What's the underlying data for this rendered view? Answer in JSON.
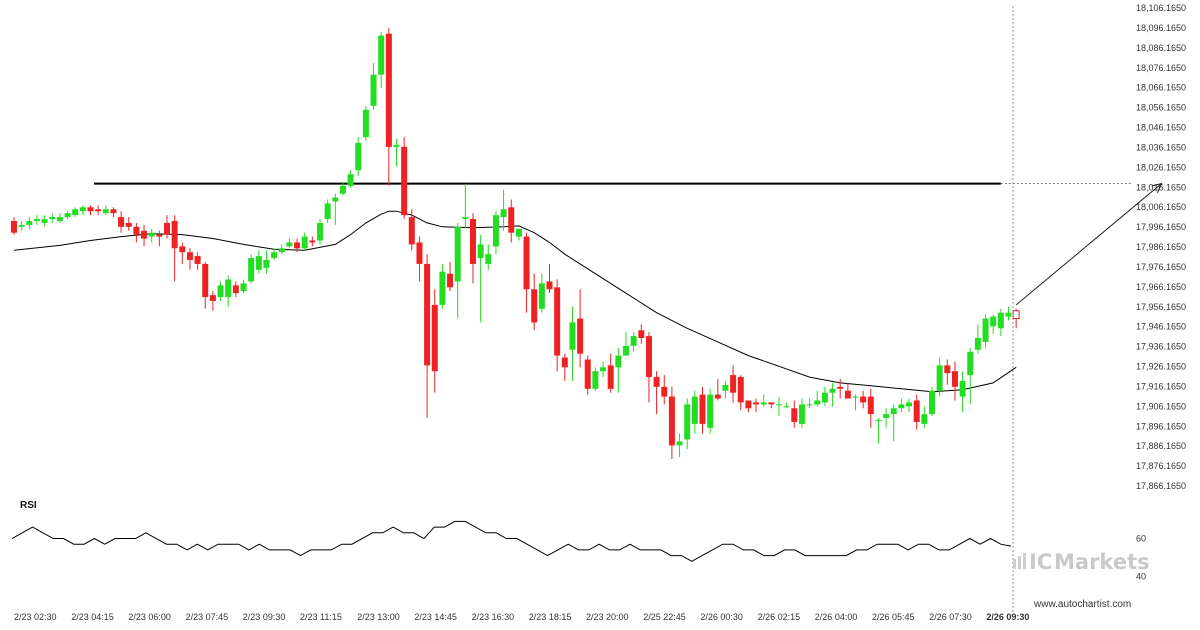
{
  "chart_data": [
    {
      "type": "candlestick",
      "ylim": [
        17861.165,
        18106.165
      ],
      "y_ticks": [
        "18,106.1650",
        "18,096.1650",
        "18,086.1650",
        "18,076.1650",
        "18,066.1650",
        "18,056.1650",
        "18,046.1650",
        "18,036.1650",
        "18,026.1650",
        "18,016.1650",
        "18,006.1650",
        "17,996.1650",
        "17,986.1650",
        "17,976.1650",
        "17,966.1650",
        "17,956.1650",
        "17,946.1650",
        "17,936.1650",
        "17,926.1650",
        "17,916.1650",
        "17,906.1650",
        "17,896.1650",
        "17,886.1650",
        "17,876.1650",
        "17,866.1650"
      ],
      "x_ticks": [
        "2/23 02:30",
        "2/23 04:15",
        "2/23 06:00",
        "2/23 07:45",
        "2/23 09:30",
        "2/23 11:15",
        "2/23 13:00",
        "2/23 14:45",
        "2/23 16:30",
        "2/23 18:15",
        "2/23 20:00",
        "2/25 22:45",
        "2/26 00:30",
        "2/26 02:15",
        "2/26 04:00",
        "2/26 05:45",
        "2/26 07:30",
        "2/26 09:30"
      ],
      "x_tick_highlight": "2/26 09:30",
      "candles": [
        [
          17997,
          17991,
          17999,
          17990
        ],
        [
          17994,
          17995,
          17997,
          17992
        ],
        [
          17995,
          17997,
          17999,
          17993
        ],
        [
          17997,
          17998,
          18000,
          17995
        ],
        [
          17996,
          17998,
          18000,
          17994
        ],
        [
          17998,
          17999,
          18001,
          17996
        ],
        [
          17997,
          17999,
          18001,
          17996
        ],
        [
          17999,
          18001,
          18002,
          17998
        ],
        [
          18000,
          18003,
          18004,
          17999
        ],
        [
          18002,
          18004,
          18005,
          18000
        ],
        [
          18004,
          18002,
          18005,
          18000
        ],
        [
          18003,
          18002,
          18005,
          18000
        ],
        [
          18001,
          18003,
          18005,
          18000
        ],
        [
          18003,
          18001,
          18004,
          17999
        ],
        [
          17999,
          17994,
          18002,
          17991
        ],
        [
          17996,
          17994,
          17999,
          17992
        ],
        [
          17994,
          17990,
          17996,
          17986
        ],
        [
          17992,
          17988,
          17995,
          17984
        ],
        [
          17989,
          17991,
          17993,
          17986
        ],
        [
          17990,
          17989,
          17992,
          17984
        ],
        [
          17996,
          17990,
          18000,
          17988
        ],
        [
          17997,
          17983,
          18000,
          17966
        ],
        [
          17984,
          17981,
          17986,
          17975
        ],
        [
          17981,
          17977,
          17983,
          17972
        ],
        [
          17979,
          17975,
          17981,
          17972
        ],
        [
          17975,
          17958,
          17976,
          17952
        ],
        [
          17959,
          17956,
          17961,
          17951
        ],
        [
          17958,
          17964,
          17966,
          17956
        ],
        [
          17958,
          17967,
          17969,
          17953
        ],
        [
          17964,
          17960,
          17966,
          17958
        ],
        [
          17961,
          17965,
          17967,
          17960
        ],
        [
          17966,
          17978,
          17980,
          17965
        ],
        [
          17972,
          17979,
          17982,
          17970
        ],
        [
          17973,
          17977,
          17982,
          17970
        ],
        [
          17978,
          17981,
          17983,
          17977
        ],
        [
          17981,
          17983,
          17985,
          17980
        ],
        [
          17984,
          17986,
          17988,
          17983
        ],
        [
          17986,
          17983,
          17988,
          17981
        ],
        [
          17983,
          17989,
          17991,
          17982
        ],
        [
          17987,
          17986,
          17989,
          17984
        ],
        [
          17987,
          17996,
          17998,
          17985
        ],
        [
          17998,
          18006,
          18008,
          17996
        ],
        [
          18007,
          18009,
          18011,
          17995
        ],
        [
          18011,
          18015,
          18017,
          18010
        ],
        [
          18015,
          18021,
          18023,
          18014
        ],
        [
          18023,
          18037,
          18040,
          18020
        ],
        [
          18040,
          18054,
          18056,
          18038
        ],
        [
          18056,
          18072,
          18078,
          18054
        ],
        [
          18072,
          18092,
          18094,
          18065
        ],
        [
          18093,
          18035,
          18096,
          18015
        ],
        [
          18035,
          18036,
          18039,
          18025
        ],
        [
          18035,
          18000,
          18040,
          17998
        ],
        [
          17999,
          17985,
          18003,
          17982
        ],
        [
          17986,
          17975,
          17989,
          17966
        ],
        [
          17975,
          17923,
          17980,
          17896
        ],
        [
          17954,
          17920,
          17962,
          17909
        ],
        [
          17954,
          17971,
          17975,
          17952
        ],
        [
          17970,
          17963,
          17976,
          17961
        ],
        [
          17966,
          17994,
          17996,
          17947
        ],
        [
          17998,
          17999,
          18016,
          17993
        ],
        [
          17998,
          17975,
          18001,
          17965
        ],
        [
          17978,
          17985,
          17990,
          17945
        ],
        [
          17975,
          17980,
          17985,
          17972
        ],
        [
          17984,
          18000,
          18002,
          17980
        ],
        [
          17999,
          18003,
          18013,
          17992
        ],
        [
          18004,
          17991,
          18008,
          17986
        ],
        [
          17989,
          17993,
          17993,
          17987
        ],
        [
          17989,
          17962,
          17991,
          17950
        ],
        [
          17962,
          17945,
          17970,
          17941
        ],
        [
          17952,
          17965,
          17970,
          17950
        ],
        [
          17966,
          17962,
          17975,
          17960
        ],
        [
          17963,
          17928,
          17967,
          17920
        ],
        [
          17927,
          17922,
          17929,
          17915
        ],
        [
          17931,
          17945,
          17953,
          17915
        ],
        [
          17947,
          17929,
          17962,
          17922
        ],
        [
          17926,
          17911,
          17928,
          17908
        ],
        [
          17911,
          17920,
          17922,
          17910
        ],
        [
          17920,
          17922,
          17925,
          17917
        ],
        [
          17923,
          17911,
          17929,
          17909
        ],
        [
          17922,
          17928,
          17932,
          17909
        ],
        [
          17928,
          17933,
          17940,
          17928
        ],
        [
          17933,
          17938,
          17940,
          17930
        ],
        [
          17941,
          17937,
          17944,
          17934
        ],
        [
          17938,
          17917,
          17940,
          17904
        ],
        [
          17917,
          17912,
          17920,
          17898
        ],
        [
          17912,
          17907,
          17918,
          17903
        ],
        [
          17907,
          17882,
          17912,
          17875
        ],
        [
          17882,
          17884,
          17888,
          17876
        ],
        [
          17885,
          17903,
          17906,
          17880
        ],
        [
          17893,
          17907,
          17910,
          17888
        ],
        [
          17908,
          17893,
          17912,
          17888
        ],
        [
          17891,
          17908,
          17911,
          17888
        ],
        [
          17908,
          17906,
          17916,
          17905
        ],
        [
          17910,
          17913,
          17915,
          17906
        ],
        [
          17918,
          17909,
          17923,
          17904
        ],
        [
          17917,
          17904,
          17918,
          17900
        ],
        [
          17905,
          17901,
          17904,
          17899
        ],
        [
          17904,
          17903,
          17906,
          17899
        ],
        [
          17903,
          17904,
          17908,
          17902
        ],
        [
          17904,
          17903,
          17903,
          17901
        ],
        [
          17903,
          17903,
          17907,
          17897
        ],
        [
          17902,
          17902,
          17904,
          17901
        ],
        [
          17901,
          17894,
          17905,
          17891
        ],
        [
          17893,
          17903,
          17906,
          17891
        ],
        [
          17903,
          17903,
          17906,
          17901
        ],
        [
          17903,
          17905,
          17910,
          17902
        ],
        [
          17904,
          17909,
          17912,
          17902
        ],
        [
          17909,
          17911,
          17914,
          17902
        ],
        [
          17912,
          17911,
          17916,
          17906
        ],
        [
          17910,
          17906,
          17914,
          17906
        ],
        [
          17907,
          17907,
          17908,
          17900
        ],
        [
          17907,
          17904,
          17910,
          17901
        ],
        [
          17907,
          17898,
          17911,
          17891
        ],
        [
          17895,
          17895,
          17896,
          17883
        ],
        [
          17896,
          17898,
          17901,
          17891
        ],
        [
          17898,
          17901,
          17903,
          17884
        ],
        [
          17901,
          17903,
          17906,
          17899
        ],
        [
          17902,
          17904,
          17906,
          17899
        ],
        [
          17905,
          17894,
          17908,
          17890
        ],
        [
          17893,
          17898,
          17902,
          17891
        ],
        [
          17898,
          17910,
          17912,
          17897
        ],
        [
          17910,
          17923,
          17927,
          17907
        ],
        [
          17923,
          17919,
          17926,
          17913
        ],
        [
          17920,
          17912,
          17925,
          17905
        ],
        [
          17907,
          17915,
          17920,
          17899
        ],
        [
          17918,
          17930,
          17932,
          17903
        ],
        [
          17931,
          17937,
          17944,
          17929
        ],
        [
          17935,
          17947,
          17949,
          17932
        ],
        [
          17943,
          17948,
          17949,
          17939
        ],
        [
          17942,
          17950,
          17952,
          17938
        ],
        [
          17948,
          17950,
          17953,
          17946
        ],
        [
          17951,
          17947,
          17952,
          17942
        ]
      ],
      "moving_average": [
        [
          0,
          17982
        ],
        [
          6,
          17984.5
        ],
        [
          10,
          17987
        ],
        [
          14,
          17989
        ],
        [
          18,
          17990.5
        ],
        [
          22,
          17990
        ],
        [
          26,
          17988
        ],
        [
          30,
          17985
        ],
        [
          34,
          17982.5
        ],
        [
          38,
          17982
        ],
        [
          42,
          17985
        ],
        [
          44,
          17990
        ],
        [
          46,
          17996
        ],
        [
          48,
          18000.5
        ],
        [
          49,
          18002
        ],
        [
          50,
          18002
        ],
        [
          52,
          18000
        ],
        [
          54,
          17996
        ],
        [
          56,
          17994
        ],
        [
          60,
          17993.5
        ],
        [
          64,
          17994
        ],
        [
          66,
          17994.5
        ],
        [
          68,
          17991
        ],
        [
          70,
          17986
        ],
        [
          72,
          17980
        ],
        [
          76,
          17970
        ],
        [
          80,
          17960
        ],
        [
          84,
          17950
        ],
        [
          88,
          17942
        ],
        [
          92,
          17935
        ],
        [
          96,
          17928
        ],
        [
          100,
          17922.5
        ],
        [
          104,
          17917
        ],
        [
          108,
          17914
        ],
        [
          112,
          17912.5
        ],
        [
          116,
          17911
        ],
        [
          120,
          17909.5
        ],
        [
          124,
          17910.5
        ],
        [
          128,
          17914
        ],
        [
          131,
          17922
        ]
      ],
      "resistance_level": 18016.165,
      "projection": {
        "from": [
          131,
          17954
        ],
        "to": [
          150,
          18016.165
        ]
      }
    },
    {
      "type": "line",
      "title": "RSI",
      "ylim": [
        35,
        75
      ],
      "y_ticks": [
        60,
        40
      ],
      "values": [
        60,
        63,
        66,
        63,
        60,
        60,
        57,
        57,
        60,
        57,
        60,
        60,
        60,
        63,
        60,
        57,
        57,
        54,
        57,
        54,
        57,
        57,
        57,
        54,
        57,
        54,
        54,
        54,
        51,
        54,
        54,
        54,
        57,
        57,
        60,
        63,
        63,
        66,
        63,
        63,
        60,
        66,
        66,
        69,
        69,
        66,
        63,
        63,
        60,
        60,
        57,
        54,
        51,
        54,
        57,
        54,
        54,
        57,
        54,
        54,
        57,
        54,
        54,
        54,
        51,
        51,
        48,
        51,
        54,
        57,
        57,
        54,
        54,
        51,
        51,
        54,
        54,
        51,
        51,
        51,
        51,
        51,
        54,
        54,
        57,
        57,
        57,
        54,
        57,
        57,
        54,
        54,
        57,
        60,
        57,
        60,
        57,
        56
      ],
      "indicator_label": "RSI"
    }
  ],
  "watermark": {
    "brand_prefix": "IC",
    "brand_name": "Markets"
  },
  "attribution": "www.autochartist.com",
  "colors": {
    "up": "#22dd22",
    "down": "#ee2222",
    "last_candle": "#ffffff",
    "line": "#000000",
    "projection": "#222222"
  }
}
